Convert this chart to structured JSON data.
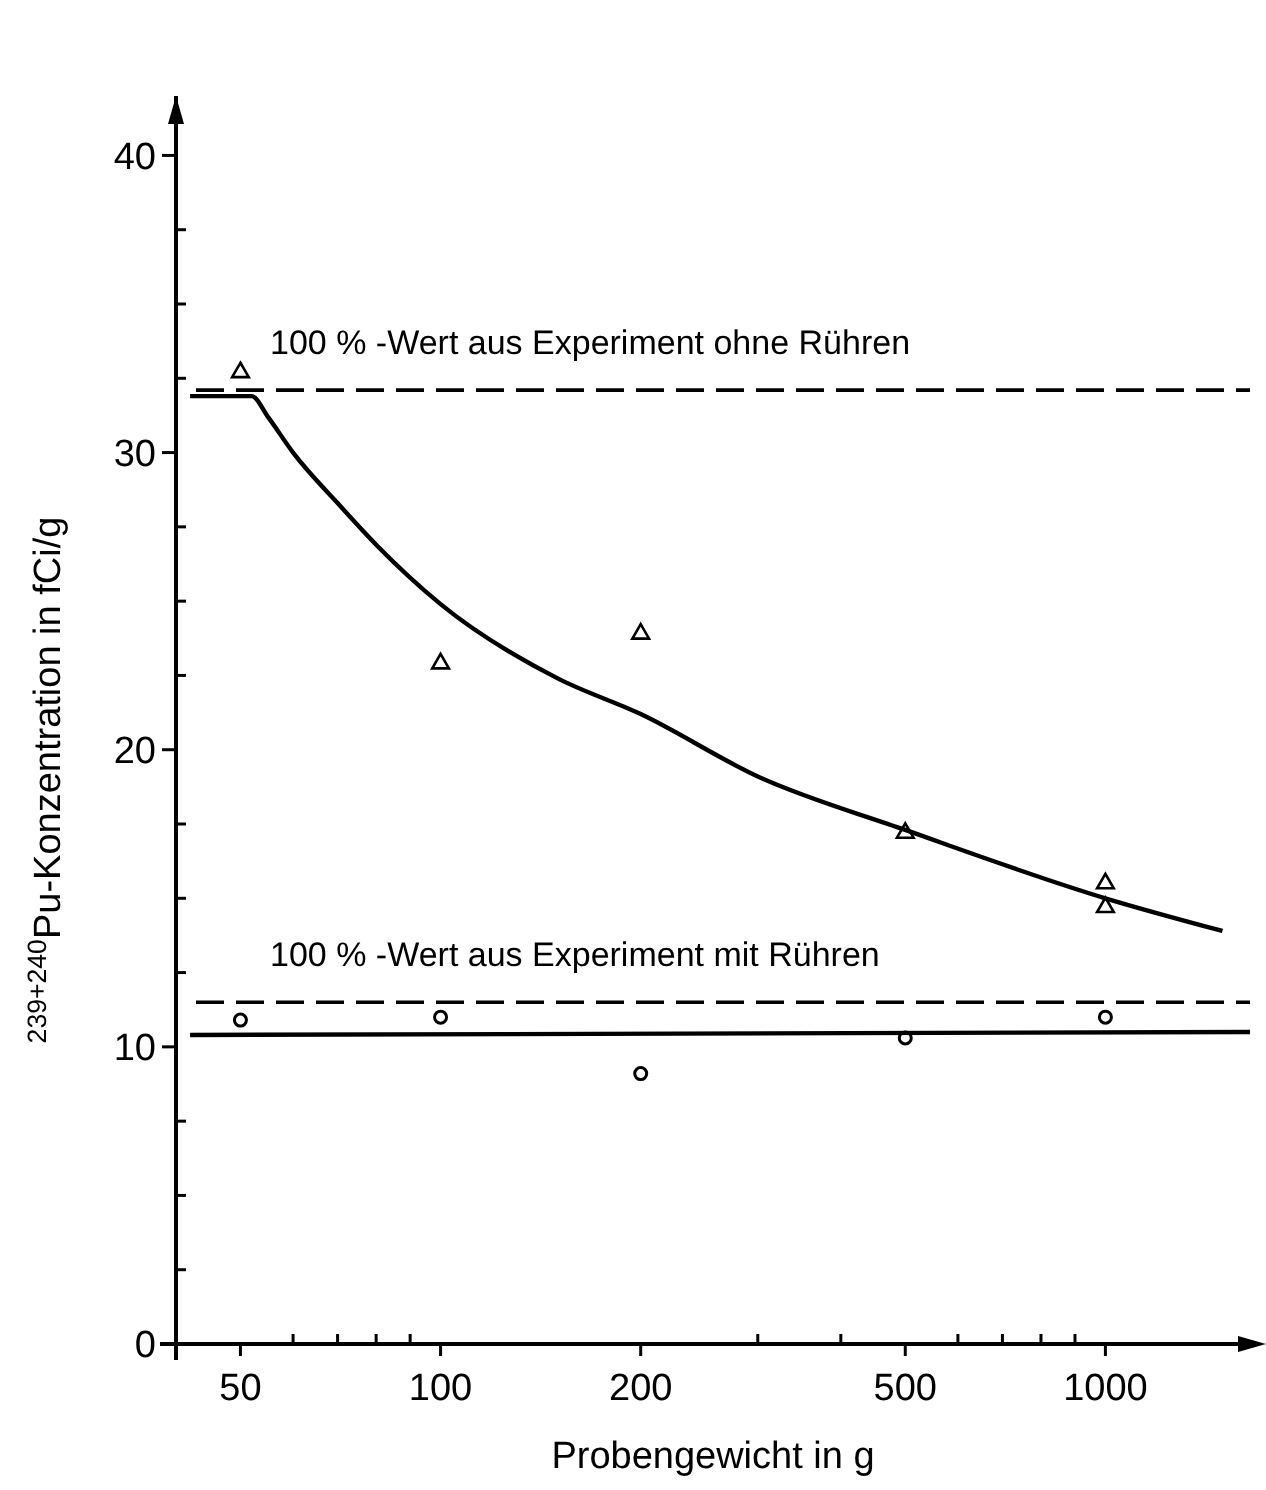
{
  "chart_data": {
    "type": "scatter",
    "xlabel": "Probengewicht in g",
    "ylabel": "$^{239+240}$Pu-Konzentration in fCi/g",
    "log": "x",
    "xlim": [
      40,
      1650
    ],
    "ylim": [
      0,
      42
    ],
    "xticks": [
      50,
      100,
      200,
      500,
      1000,
      {
        "value": 60,
        "label": null
      },
      {
        "value": 70,
        "label": null
      },
      {
        "value": 80,
        "label": null
      },
      {
        "value": 90,
        "label": null
      },
      {
        "value": 300,
        "label": null
      },
      {
        "value": 400,
        "label": null
      },
      {
        "value": 600,
        "label": null
      },
      {
        "value": 700,
        "label": null
      },
      {
        "value": 800,
        "label": null
      },
      {
        "value": 900,
        "label": null
      }
    ],
    "yticks": [
      0,
      10,
      20,
      30,
      40,
      {
        "value": 2.5,
        "label": null
      },
      {
        "value": 5,
        "label": null
      },
      {
        "value": 7.5,
        "label": null
      },
      {
        "value": 12.5,
        "label": null
      },
      {
        "value": 15,
        "label": null
      },
      {
        "value": 17.5,
        "label": null
      },
      {
        "value": 22.5,
        "label": null
      },
      {
        "value": 25,
        "label": null
      },
      {
        "value": 27.5,
        "label": null
      },
      {
        "value": 32.5,
        "label": null
      },
      {
        "value": 35,
        "label": null
      },
      {
        "value": 37.5,
        "label": null
      }
    ],
    "grid": false,
    "series": [
      {
        "marker": "triangle",
        "color": "#000000",
        "x": [
          50,
          100,
          200,
          500,
          1000,
          1000
        ],
        "values": [
          32.7,
          22.9,
          23.9,
          17.2,
          15.5,
          14.7
        ]
      },
      {
        "marker": "circle",
        "color": "#000000",
        "x": [
          50,
          100,
          200,
          500,
          1000
        ],
        "values": [
          10.9,
          11.0,
          9.1,
          10.3,
          11.0
        ]
      },
      {
        "type": "line",
        "marker": "none",
        "line_style": "solid",
        "color": "#000000",
        "x": [
          42,
          52,
          55,
          60,
          70,
          80,
          100,
          150,
          200,
          300,
          500,
          1000,
          1500
        ],
        "values": [
          31.9,
          31.9,
          31.2,
          30.0,
          28.3,
          26.9,
          24.9,
          22.4,
          21.2,
          19.1,
          17.3,
          15.0,
          13.9
        ]
      },
      {
        "type": "line",
        "marker": "none",
        "line_style": "solid",
        "color": "#000000",
        "x": [
          42,
          1650
        ],
        "values": [
          10.4,
          10.5
        ]
      }
    ],
    "ref_lines": [
      {
        "axis": "y",
        "value": 32.1,
        "label": "100 % -Wert aus Experiment ohne Rühren",
        "line_style": "dashed",
        "color": "#000000"
      },
      {
        "axis": "y",
        "value": 11.5,
        "label": "100 % -Wert aus Experiment mit Rühren",
        "line_style": "dashed",
        "color": "#000000"
      }
    ]
  }
}
